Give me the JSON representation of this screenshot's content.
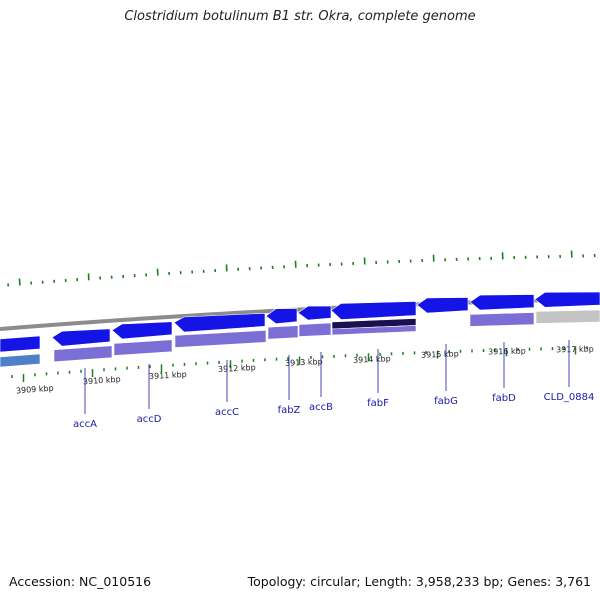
{
  "title": "Clostridium botulinum B1 str. Okra, complete genome",
  "accession": "Accession: NC_010516",
  "stats": "Topology: circular; Length: 3,958,233 bp; Genes: 3,761",
  "colors": {
    "backbone": "#8c8c8c",
    "gene_blue": "#1414e6",
    "gene_light": "#7b6fd6",
    "gene_dark": "#1a1050",
    "gene_gray": "#c4c4c4",
    "gene_cyan": "#4f7fc8",
    "tick_green": "#1e7f1e",
    "label_blue": "#1a1aa8"
  },
  "kbp_labels": [
    "3909 kbp",
    "3910 kbp",
    "3911 kbp",
    "3912 kbp",
    "3913 kbp",
    "3914 kbp",
    "3915 kbp",
    "3916 kbp",
    "3917 kbp"
  ],
  "gene_labels": [
    "accA",
    "accD",
    "accC",
    "fabZ",
    "accB",
    "fabF",
    "fabG",
    "fabD",
    "CLD_0884"
  ]
}
